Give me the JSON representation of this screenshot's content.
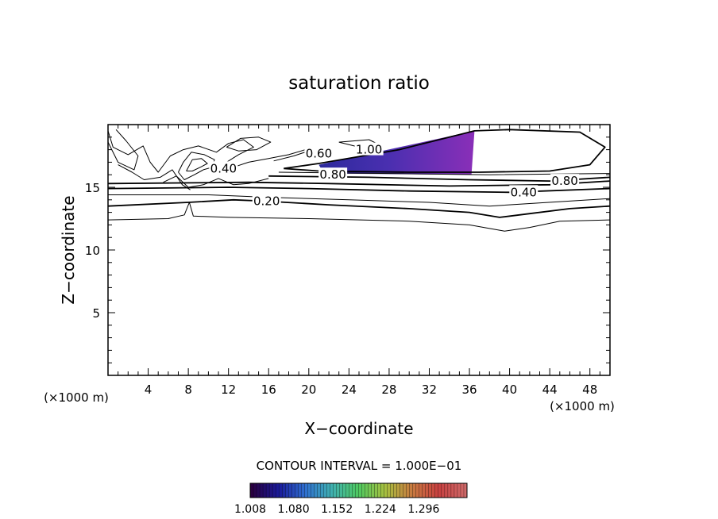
{
  "chart_data": {
    "type": "contour",
    "title": "saturation ratio",
    "xlabel": "X−coordinate",
    "ylabel": "Z−coordinate",
    "x_unit_left": "(×1000 m)",
    "x_unit_right": "(×1000 m)",
    "xlim": [
      0,
      50
    ],
    "ylim": [
      0,
      20
    ],
    "x_ticks": [
      4,
      8,
      12,
      16,
      20,
      24,
      28,
      32,
      36,
      40,
      44,
      48
    ],
    "y_ticks": [
      5,
      10,
      15
    ],
    "contour_interval_text": "CONTOUR INTERVAL = 1.000E−01",
    "contour_labels": [
      {
        "text": "0.20",
        "x": 15.8,
        "z": 13.9
      },
      {
        "text": "0.40",
        "x": 11.5,
        "z": 16.5
      },
      {
        "text": "0.60",
        "x": 21.0,
        "z": 17.7
      },
      {
        "text": "1.00",
        "x": 26.0,
        "z": 18.0
      },
      {
        "text": "0.80",
        "x": 22.4,
        "z": 16.0
      },
      {
        "text": "0.40",
        "x": 41.4,
        "z": 14.6
      },
      {
        "text": "0.80",
        "x": 45.5,
        "z": 15.5
      }
    ],
    "shaded_region": {
      "description_values_min": 1.008,
      "points": [
        [
          21.0,
          16.8
        ],
        [
          36.5,
          19.5
        ],
        [
          36.2,
          16.0
        ],
        [
          21.5,
          16.1
        ]
      ]
    },
    "colorbar": {
      "tick_labels": [
        "1.008",
        "1.080",
        "1.152",
        "1.224",
        "1.296"
      ],
      "min": 1.008,
      "max": 1.368,
      "colors": [
        "#2a0040",
        "#1a1a9a",
        "#2f6fd0",
        "#3fb0b0",
        "#4fc860",
        "#a8c040",
        "#c87a40",
        "#c84040",
        "#d06a6a"
      ]
    },
    "isolines": [
      {
        "value": 0.1,
        "points": [
          [
            0,
            12.4
          ],
          [
            6,
            12.5
          ],
          [
            7.6,
            12.8
          ],
          [
            8.1,
            13.8
          ],
          [
            8.5,
            12.7
          ],
          [
            12,
            12.6
          ],
          [
            20,
            12.5
          ],
          [
            30,
            12.3
          ],
          [
            36,
            12.0
          ],
          [
            39.5,
            11.5
          ],
          [
            42,
            11.8
          ],
          [
            45,
            12.3
          ],
          [
            50,
            12.4
          ]
        ]
      },
      {
        "value": 0.2,
        "points": [
          [
            0,
            13.5
          ],
          [
            8,
            13.8
          ],
          [
            12.5,
            14.0
          ],
          [
            15.5,
            13.9
          ],
          [
            22,
            13.6
          ],
          [
            30,
            13.3
          ],
          [
            36,
            13.0
          ],
          [
            39,
            12.6
          ],
          [
            42,
            12.9
          ],
          [
            46,
            13.3
          ],
          [
            50,
            13.5
          ]
        ]
      },
      {
        "value": 0.3,
        "points": [
          [
            0,
            14.4
          ],
          [
            10,
            14.4
          ],
          [
            16,
            14.2
          ],
          [
            24,
            14.0
          ],
          [
            32,
            13.8
          ],
          [
            38,
            13.5
          ],
          [
            42,
            13.7
          ],
          [
            50,
            14.1
          ]
        ]
      },
      {
        "value": 0.4,
        "points": [
          [
            0,
            14.9
          ],
          [
            12,
            15.0
          ],
          [
            20,
            14.9
          ],
          [
            30,
            14.7
          ],
          [
            40,
            14.6
          ],
          [
            50,
            14.9
          ]
        ]
      },
      {
        "value": 0.6,
        "points": [
          [
            0,
            15.3
          ],
          [
            14,
            15.4
          ],
          [
            22,
            15.3
          ],
          [
            34,
            15.1
          ],
          [
            44,
            15.2
          ],
          [
            50,
            15.5
          ]
        ]
      },
      {
        "value": 0.8,
        "points": [
          [
            16,
            15.9
          ],
          [
            26,
            15.8
          ],
          [
            36,
            15.6
          ],
          [
            44,
            15.5
          ],
          [
            50,
            15.8
          ]
        ]
      },
      {
        "value": 0.9,
        "points": [
          [
            17,
            16.2
          ],
          [
            28,
            16.1
          ],
          [
            38,
            16.0
          ],
          [
            50,
            16.1
          ]
        ]
      },
      {
        "value": 1.0,
        "points": [
          [
            17.5,
            16.5
          ],
          [
            21,
            16.9
          ],
          [
            29,
            18.0
          ],
          [
            36.5,
            19.5
          ],
          [
            40,
            19.6
          ],
          [
            47,
            19.4
          ],
          [
            49.5,
            18.2
          ],
          [
            48,
            16.8
          ],
          [
            44,
            16.3
          ],
          [
            37,
            16.2
          ],
          [
            30,
            16.2
          ],
          [
            21,
            16.3
          ],
          [
            17.5,
            16.5
          ]
        ]
      },
      {
        "value": 0.5,
        "points": [
          [
            0,
            19.5
          ],
          [
            0.5,
            18.2
          ],
          [
            2.0,
            17.6
          ],
          [
            3.5,
            18.3
          ],
          [
            4.2,
            17.0
          ],
          [
            5.0,
            16.2
          ],
          [
            6.2,
            17.5
          ],
          [
            7.5,
            18.0
          ],
          [
            9.0,
            18.3
          ],
          [
            10.8,
            17.8
          ],
          [
            12.0,
            18.5
          ],
          [
            13.5,
            18.8
          ],
          [
            14.5,
            18.2
          ],
          [
            13.0,
            17.6
          ],
          [
            11.8,
            17.0
          ],
          [
            12.5,
            16.6
          ],
          [
            14.0,
            17.0
          ],
          [
            16.0,
            17.3
          ],
          [
            18.0,
            17.6
          ],
          [
            20.5,
            18.2
          ]
        ]
      },
      {
        "value": 0.7,
        "points": [
          [
            7.0,
            16.2
          ],
          [
            7.5,
            17.0
          ],
          [
            8.3,
            17.8
          ],
          [
            9.6,
            17.6
          ],
          [
            10.6,
            17.2
          ],
          [
            10.4,
            16.6
          ],
          [
            9.5,
            16.4
          ],
          [
            8.6,
            16.0
          ],
          [
            7.6,
            15.6
          ],
          [
            7.0,
            16.2
          ]
        ]
      },
      {
        "value": 0.75,
        "points": [
          [
            7.8,
            16.3
          ],
          [
            8.4,
            17.2
          ],
          [
            9.3,
            17.3
          ],
          [
            9.9,
            16.9
          ],
          [
            9.2,
            16.6
          ],
          [
            8.4,
            16.3
          ],
          [
            7.8,
            16.3
          ]
        ]
      },
      {
        "value": 0.45,
        "points": [
          [
            5.5,
            15.4
          ],
          [
            6.8,
            15.9
          ],
          [
            8.0,
            15.0
          ],
          [
            9.5,
            15.2
          ],
          [
            11.0,
            15.7
          ],
          [
            12.5,
            15.2
          ],
          [
            14.0,
            15.3
          ],
          [
            16.0,
            15.7
          ]
        ]
      },
      {
        "value": 0.55,
        "points": [
          [
            1.0,
            16.8
          ],
          [
            2.4,
            16.2
          ],
          [
            3.6,
            15.6
          ],
          [
            5.2,
            15.8
          ],
          [
            6.4,
            16.4
          ],
          [
            7.4,
            15.2
          ],
          [
            8.2,
            14.8
          ]
        ]
      },
      {
        "value": 0.35,
        "points": [
          [
            11.8,
            18.2
          ],
          [
            13.2,
            18.9
          ],
          [
            15.0,
            19.0
          ],
          [
            16.2,
            18.6
          ],
          [
            14.8,
            18.0
          ],
          [
            13.0,
            17.9
          ],
          [
            11.8,
            18.2
          ]
        ]
      },
      {
        "value": 0.65,
        "points": [
          [
            16.5,
            17.1
          ],
          [
            18.5,
            17.5
          ],
          [
            20.0,
            17.9
          ],
          [
            21.4,
            17.3
          ]
        ]
      },
      {
        "value": 0.25,
        "points": [
          [
            0,
            18.6
          ],
          [
            1.0,
            17.0
          ],
          [
            2.6,
            16.4
          ],
          [
            3.0,
            17.5
          ],
          [
            1.8,
            18.7
          ],
          [
            0.8,
            19.6
          ]
        ]
      },
      {
        "value": 0.15,
        "points": [
          [
            23.0,
            18.6
          ],
          [
            26.0,
            18.8
          ],
          [
            27.0,
            18.4
          ],
          [
            25.0,
            18.2
          ],
          [
            23.0,
            18.6
          ]
        ]
      }
    ]
  }
}
